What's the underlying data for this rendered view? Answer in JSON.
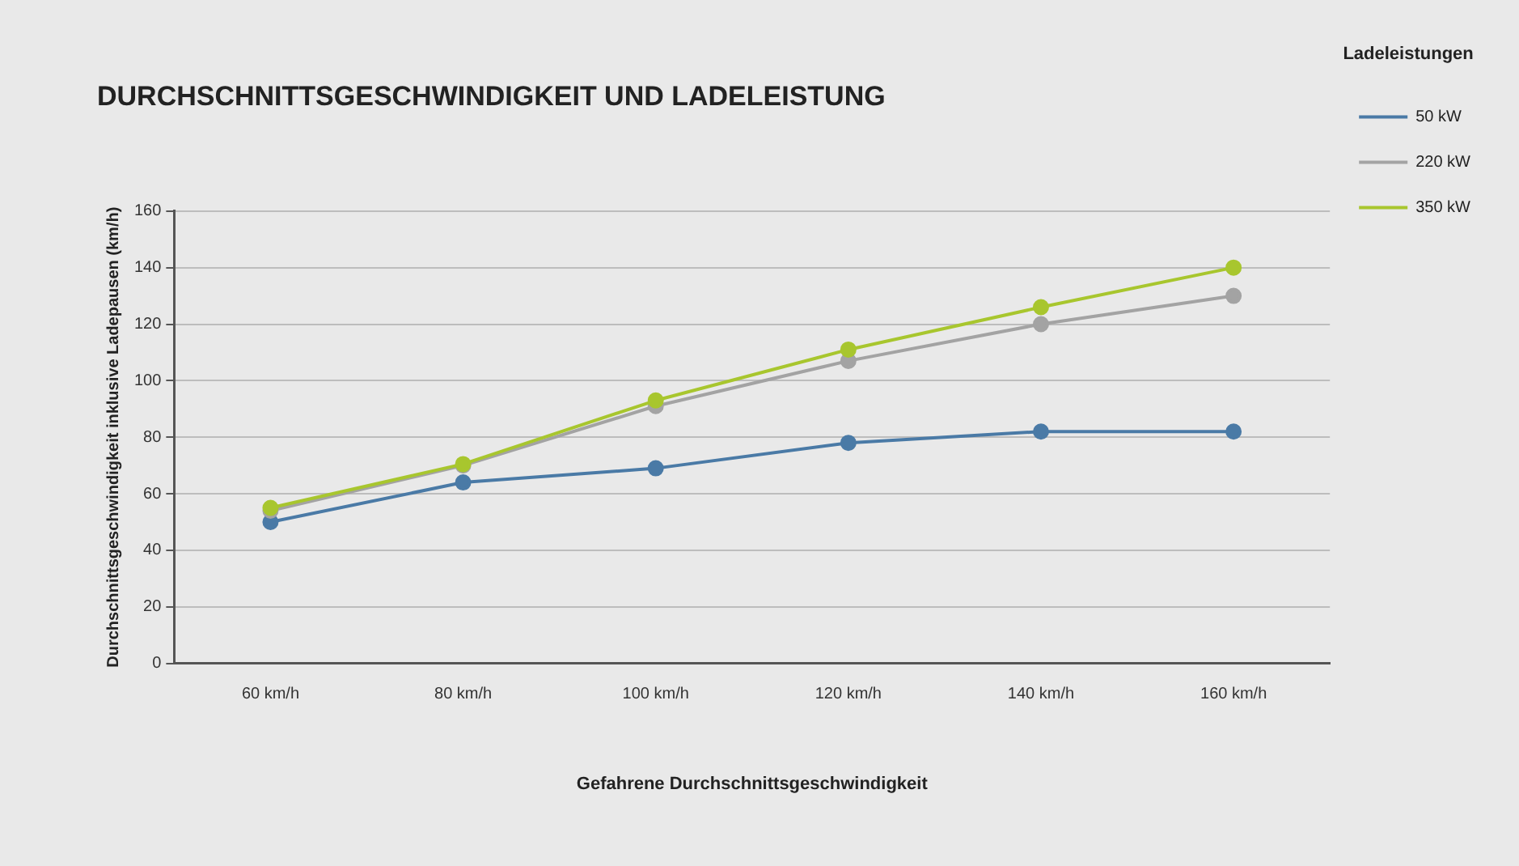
{
  "chart_data": {
    "type": "line",
    "title": "DURCHSCHNITTSGESCHWINDIGKEIT UND LADELEISTUNG",
    "xlabel": "Gefahrene Durchschnittsgeschwindigkeit",
    "ylabel": "Durchschnittsgeschwindigkeit inklusive Ladepausen (km/h)",
    "legend_title": "Ladeleistungen",
    "categories": [
      "60 km/h",
      "80 km/h",
      "100 km/h",
      "120 km/h",
      "140 km/h",
      "160 km/h"
    ],
    "series": [
      {
        "name": "50 kW",
        "color": "#4a7aa6",
        "values": [
          50,
          64,
          69,
          78,
          82,
          82
        ]
      },
      {
        "name": "220 kW",
        "color": "#a3a3a3",
        "values": [
          54,
          70,
          91,
          107,
          120,
          130
        ]
      },
      {
        "name": "350 kW",
        "color": "#a8c62e",
        "values": [
          55,
          70.5,
          93,
          111,
          126,
          140
        ]
      }
    ],
    "ylim": [
      0,
      160
    ],
    "yticks": [
      0,
      20,
      40,
      60,
      80,
      100,
      120,
      140,
      160
    ],
    "grid": "y",
    "legend": "right",
    "marker": "circle",
    "line_style": "solid"
  }
}
